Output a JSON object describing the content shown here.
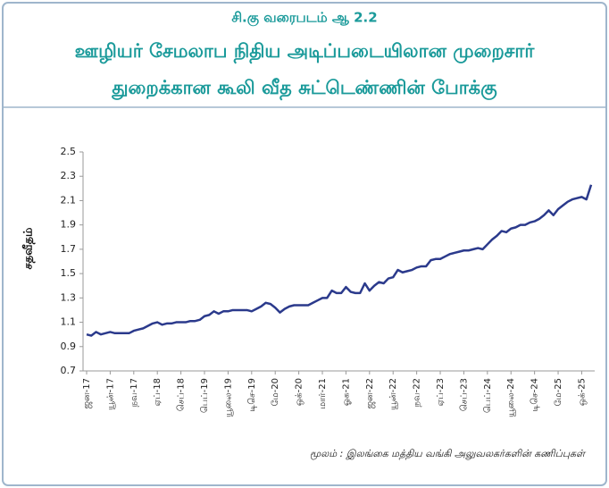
{
  "chart_data": {
    "type": "line",
    "title": "சி.கு வரைபடம் ஆ 2.2",
    "subtitle": [
      "ஊழியர் சேமலாப நிதிய அடிப்படையிலான முறைசார்",
      "துறைக்கான கூலி வீத சுட்டெண்ணின் போக்கு"
    ],
    "y_label": "சதவீதம்",
    "source": "மூலம் : இலங்கை மத்திய வங்கி அலுவலகர்களின் கணிப்புகள்",
    "categories": [
      "ஜன-17",
      null,
      null,
      null,
      null,
      "யூன்-17",
      null,
      null,
      null,
      null,
      "நவ-17",
      null,
      null,
      null,
      null,
      "ஏப்-18",
      null,
      null,
      null,
      null,
      "செப்-18",
      null,
      null,
      null,
      null,
      "பெப்-19",
      null,
      null,
      null,
      null,
      "யூலை-19",
      null,
      null,
      null,
      null,
      "டிசெ-19",
      null,
      null,
      null,
      null,
      "மே-20",
      null,
      null,
      null,
      null,
      "ஒக்-20",
      null,
      null,
      null,
      null,
      "மார்-21",
      null,
      null,
      null,
      null,
      "ஓக-21",
      null,
      null,
      null,
      null,
      "ஜன-22",
      null,
      null,
      null,
      null,
      "யூன்-22",
      null,
      null,
      null,
      null,
      "நவ-22",
      null,
      null,
      null,
      null,
      "ஏப்-23",
      null,
      null,
      null,
      null,
      "செப்-23",
      null,
      null,
      null,
      null,
      "பெப்-24",
      null,
      null,
      null,
      null,
      "யூலை-24",
      null,
      null,
      null,
      null,
      "டிசெ-24",
      null,
      null,
      null,
      null,
      "மே-25",
      null,
      null,
      null,
      null,
      "ஒக்-25",
      null,
      null
    ],
    "series": [
      {
        "name": "சதவீதம்",
        "color": "#2b3a8c",
        "values": [
          1.0,
          0.99,
          1.02,
          1.0,
          1.01,
          1.02,
          1.01,
          1.01,
          1.01,
          1.01,
          1.03,
          1.04,
          1.05,
          1.07,
          1.09,
          1.1,
          1.08,
          1.09,
          1.09,
          1.1,
          1.1,
          1.1,
          1.11,
          1.11,
          1.12,
          1.15,
          1.16,
          1.19,
          1.17,
          1.19,
          1.19,
          1.2,
          1.2,
          1.2,
          1.2,
          1.19,
          1.21,
          1.23,
          1.26,
          1.25,
          1.22,
          1.18,
          1.21,
          1.23,
          1.24,
          1.24,
          1.24,
          1.24,
          1.26,
          1.28,
          1.3,
          1.3,
          1.36,
          1.34,
          1.34,
          1.39,
          1.35,
          1.34,
          1.34,
          1.42,
          1.36,
          1.4,
          1.43,
          1.42,
          1.46,
          1.47,
          1.53,
          1.51,
          1.52,
          1.53,
          1.55,
          1.56,
          1.56,
          1.61,
          1.62,
          1.62,
          1.64,
          1.66,
          1.67,
          1.68,
          1.69,
          1.69,
          1.7,
          1.71,
          1.7,
          1.74,
          1.78,
          1.81,
          1.85,
          1.84,
          1.87,
          1.88,
          1.9,
          1.9,
          1.92,
          1.93,
          1.95,
          1.98,
          2.02,
          1.98,
          2.03,
          2.06,
          2.09,
          2.11,
          2.12,
          2.13,
          2.11,
          2.23
        ]
      }
    ],
    "ylim": [
      0.7,
      2.5
    ],
    "yticks": [
      0.7,
      0.9,
      1.1,
      1.3,
      1.5,
      1.7,
      1.9,
      2.1,
      2.3,
      2.5
    ]
  }
}
